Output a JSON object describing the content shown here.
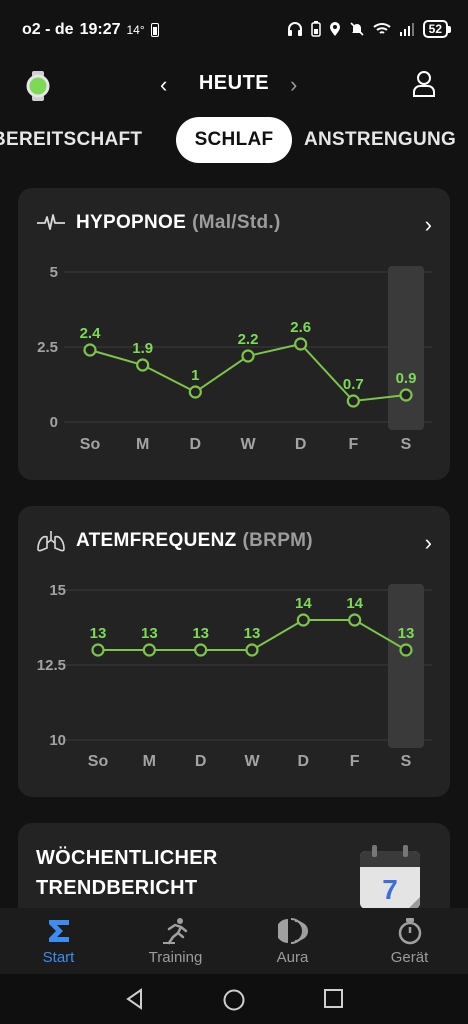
{
  "status_bar": {
    "carrier": "o2 - de",
    "time": "19:27",
    "temperature": "14°",
    "battery": "52"
  },
  "header": {
    "title": "HEUTE",
    "prev_icon": "chevron-left-icon",
    "next_icon": "chevron-right-icon"
  },
  "tabs": [
    {
      "label": "BEREITSCHAFT",
      "active": false
    },
    {
      "label": "SCHLAF",
      "active": true
    },
    {
      "label": "ANSTRENGUNG",
      "active": false
    }
  ],
  "colors": {
    "accent_green": "#7ed957",
    "line_green": "#7cc44a",
    "active_blue": "#3e8cf0",
    "card_bg": "#232323"
  },
  "hypopnea_card": {
    "title": "HYPOPNOE",
    "unit": "(Mal/Std.)",
    "chart_data": {
      "type": "line",
      "categories": [
        "So",
        "M",
        "D",
        "W",
        "D",
        "F",
        "S"
      ],
      "values": [
        2.4,
        1.9,
        1,
        2.2,
        2.6,
        0.7,
        0.9
      ],
      "value_labels": [
        "2.4",
        "1.9",
        "1",
        "2.2",
        "2.6",
        "0.7",
        "0.9"
      ],
      "y_ticks": [
        "5",
        "2.5",
        "0"
      ],
      "ylim": [
        0,
        5
      ],
      "highlight_index": 6,
      "grid": true
    }
  },
  "resp_card": {
    "title": "ATEMFREQUENZ",
    "unit": "(BRPM)",
    "chart_data": {
      "type": "line",
      "categories": [
        "So",
        "M",
        "D",
        "W",
        "D",
        "F",
        "S"
      ],
      "values": [
        13,
        13,
        13,
        13,
        14,
        14,
        13
      ],
      "value_labels": [
        "13",
        "13",
        "13",
        "13",
        "14",
        "14",
        "13"
      ],
      "y_ticks": [
        "15",
        "12.5",
        "10"
      ],
      "ylim": [
        10,
        15
      ],
      "highlight_index": 6,
      "grid": true
    }
  },
  "trend_card": {
    "title": "WÖCHENTLICHER TRENDBERICHT",
    "calendar_day": "7"
  },
  "bottom_nav": [
    {
      "label": "Start",
      "icon": "sigma-icon",
      "active": true
    },
    {
      "label": "Training",
      "icon": "runner-icon",
      "active": false
    },
    {
      "label": "Aura",
      "icon": "aura-icon",
      "active": false
    },
    {
      "label": "Gerät",
      "icon": "stopwatch-icon",
      "active": false
    }
  ]
}
